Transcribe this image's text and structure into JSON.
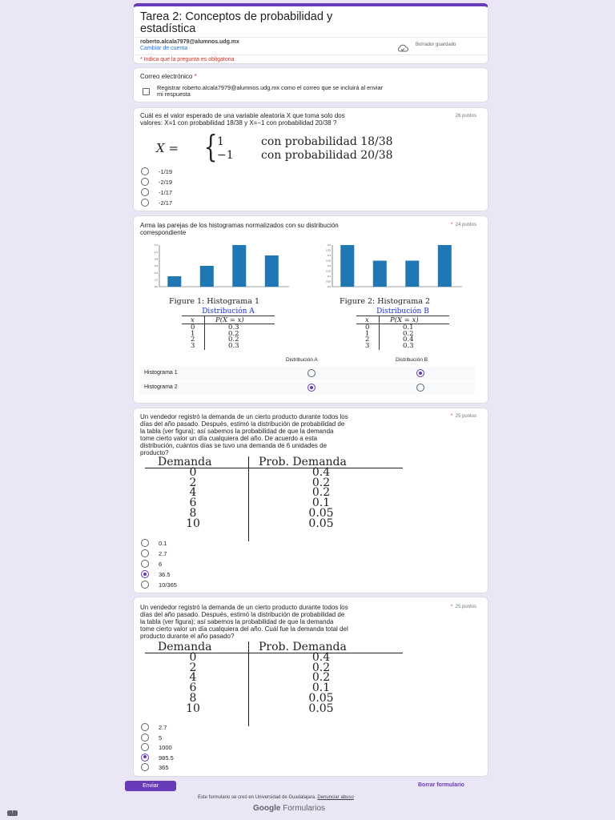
{
  "form": {
    "title_line1": "Tarea 2: Conceptos de probabilidad y",
    "title_line2": "estadística",
    "email": "roberto.alcala7979@alumnos.udg.mx",
    "switch_account": "Cambiar de cuenta",
    "draft_status": "Borrador guardado",
    "required_note": "* Indica que la pregunta es obligatoria",
    "accent": "#673ab7"
  },
  "email_question": {
    "label": "Correo electrónico",
    "required": "*",
    "checkbox_line1": "Registrar roberto.alcala7979@alumnos.udg.mx como el correo que se incluirá al enviar",
    "checkbox_line2": "mi respuesta"
  },
  "q1": {
    "line1": "Cuál es el valor esperado de una variable aleatoria X que toma solo dos",
    "line2": "valores: X=1 con probabilidad 18/38 y X=−1 con probabilidad 20/38 ?",
    "points": "26 puntos",
    "formula_lhs": "X =",
    "formula_v1": "1",
    "formula_p1": "con probabilidad 18/38",
    "formula_v2": "−1",
    "formula_p2": "con probabilidad 20/38",
    "options": [
      "-1/19",
      "-2/19",
      "-1/17",
      "-2/17"
    ],
    "selected": -1
  },
  "q2": {
    "line1": "Arma las parejas de los histogramas normalizados con su distribución",
    "line2": "correspondiente",
    "required": "*",
    "points": "24 puntos",
    "fig1_caption": "Figure 1: Histograma 1",
    "fig2_caption": "Figure 2: Histograma 2",
    "hist1": {
      "values": [
        0.3,
        0.6,
        1.2,
        0.9
      ],
      "yticks": [
        "1.2",
        "1.0",
        "0.8",
        "0.6",
        "0.4",
        "0.2",
        "0.0"
      ]
    },
    "hist2": {
      "values": [
        0.4,
        0.25,
        0.25,
        0.4
      ],
      "yticks": [
        "0.4",
        "0.35",
        "0.3",
        "0.25",
        "0.2",
        "0.15",
        "0.1",
        "0.05",
        "0.0"
      ]
    },
    "distA": {
      "title": "Distribución A",
      "col_x": "x",
      "col_p": "P(X = x)",
      "rows": [
        [
          "0",
          "0.3"
        ],
        [
          "1",
          "0.2"
        ],
        [
          "2",
          "0.2"
        ],
        [
          "3",
          "0.3"
        ]
      ]
    },
    "distB": {
      "title": "Distribución B",
      "col_x": "x",
      "col_p": "P(X = x)",
      "rows": [
        [
          "0",
          "0.1"
        ],
        [
          "1",
          "0.2"
        ],
        [
          "2",
          "0.4"
        ],
        [
          "3",
          "0.3"
        ]
      ]
    },
    "grid_col_a": "Distribución A",
    "grid_col_b": "Distribución B",
    "row1_label": "Histograma 1",
    "row2_label": "Histograma 2"
  },
  "q3": {
    "lines": [
      "Un vendedor registró la demanda de un cierto producto durante todos los",
      "días del año pasado. Después, estimó la distribución de probabilidad de",
      "la tabla (ver figura); así sabemos la probabilidad de que la demanda",
      "tome cierto valor un día cualquiera del año. De acuerdo a esta",
      "distribución, cuántos días se tuvo una demanda de 6 unidades de",
      "producto?"
    ],
    "required": "*",
    "points": "25 puntos",
    "col1": "Demanda",
    "col2": "Prob. Demanda",
    "rows": [
      [
        "0",
        "0.4"
      ],
      [
        "2",
        "0.2"
      ],
      [
        "4",
        "0.2"
      ],
      [
        "6",
        "0.1"
      ],
      [
        "8",
        "0.05"
      ],
      [
        "10",
        "0.05"
      ]
    ],
    "options": [
      "0.1",
      "2.7",
      "6",
      "36.5",
      "10/365"
    ],
    "selected": 3
  },
  "q4": {
    "lines": [
      "Un vendedor registró la demanda de un cierto producto durante todos los",
      "días del año pasado. Después, estimó la distribución de probabilidad de",
      "la tabla (ver figura); así sabemos la probabilidad de que la demanda",
      "tome cierto valor un día cualquiera del año. Cuál fue la demanda total del",
      "producto durante el año pasado?"
    ],
    "required": "*",
    "points": "25 puntos",
    "col1": "Demanda",
    "col2": "Prob. Demanda",
    "rows": [
      [
        "0",
        "0.4"
      ],
      [
        "2",
        "0.2"
      ],
      [
        "4",
        "0.2"
      ],
      [
        "6",
        "0.1"
      ],
      [
        "8",
        "0.05"
      ],
      [
        "10",
        "0.05"
      ]
    ],
    "options": [
      "2.7",
      "5",
      "1000",
      "985.5",
      "365"
    ],
    "selected": 3
  },
  "footer": {
    "submit": "Enviar",
    "clear": "Borrar formulario",
    "notice": "Este formulario se creó en Universidad de Guadalajara.",
    "report": "Denunciar abuso",
    "brand_google": "Google",
    "brand_forms": "Formularios"
  }
}
